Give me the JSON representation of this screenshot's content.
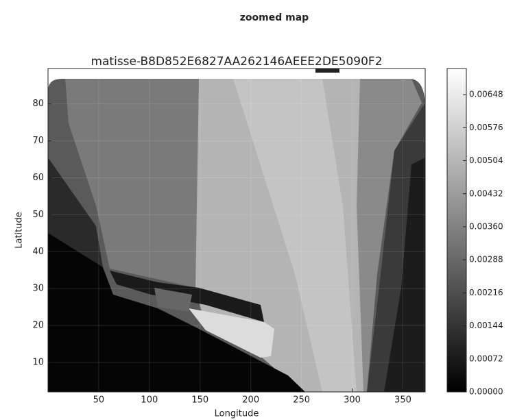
{
  "chart_data": {
    "type": "heatmap",
    "title": "zoomed map",
    "subtitle": "matisse-B8D852E6827AA262146AEEE2DE5090F2",
    "x_label": "Longitude",
    "y_label": "Latitude",
    "xlim": [
      0,
      372
    ],
    "xticks": [
      50,
      100,
      150,
      200,
      250,
      300,
      350
    ],
    "ylim": [
      2,
      89.6
    ],
    "yticks": [
      10,
      20,
      30,
      40,
      50,
      60,
      70,
      80
    ],
    "grid": true,
    "colormap": [
      "#000000",
      "#ffffff"
    ],
    "clim": [
      0,
      0.00705
    ],
    "cticks": [
      {
        "value": 0,
        "label": "0.00000"
      },
      0.00072,
      0.00144,
      0.00216,
      0.00288,
      {
        "value": 0.0036,
        "label": "0.00360"
      },
      0.00432,
      0.00504,
      0.00576,
      0.00648
    ]
  }
}
